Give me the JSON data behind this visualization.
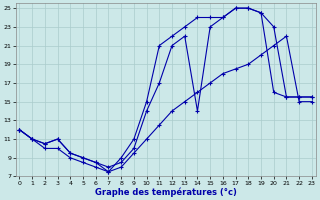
{
  "bg_color": "#cce8e8",
  "line_color": "#0000aa",
  "grid_color": "#aacccc",
  "xlim_min": -0.3,
  "xlim_max": 23.3,
  "ylim_min": 7,
  "ylim_max": 25.5,
  "xticks": [
    0,
    1,
    2,
    3,
    4,
    5,
    6,
    7,
    8,
    9,
    10,
    11,
    12,
    13,
    14,
    15,
    16,
    17,
    18,
    19,
    20,
    21,
    22,
    23
  ],
  "yticks": [
    7,
    9,
    11,
    13,
    15,
    17,
    19,
    21,
    23,
    25
  ],
  "line1_x": [
    0,
    1,
    2,
    3,
    4,
    5,
    6,
    7,
    8,
    9,
    10,
    11,
    12,
    13,
    14,
    15,
    16,
    17,
    18,
    19,
    20,
    21,
    22,
    23
  ],
  "line1_y": [
    12,
    11,
    10.5,
    11,
    9.5,
    9,
    8.5,
    8,
    8.5,
    10,
    14,
    17,
    21,
    22,
    14,
    23,
    24,
    25,
    25,
    24.5,
    23,
    15.5,
    15.5,
    15.5
  ],
  "line2_x": [
    0,
    1,
    2,
    3,
    4,
    5,
    6,
    7,
    8,
    9,
    10,
    11,
    12,
    13,
    14,
    15,
    16,
    17,
    18,
    19,
    20,
    21,
    22,
    23
  ],
  "line2_y": [
    12,
    11,
    10,
    10,
    9,
    8.5,
    8,
    7.5,
    8,
    9.5,
    11,
    12.5,
    14,
    15,
    16,
    17,
    18,
    18.5,
    19,
    20,
    21,
    22,
    15,
    15
  ],
  "line3_x": [
    0,
    1,
    2,
    3,
    4,
    5,
    6,
    7,
    8,
    9,
    10,
    11,
    12,
    13,
    14,
    15,
    16,
    17,
    18,
    19,
    20,
    21,
    22,
    23
  ],
  "line3_y": [
    12,
    11,
    10.5,
    11,
    9.5,
    9,
    8.5,
    7.5,
    9,
    11,
    15,
    21,
    22,
    23,
    24,
    24,
    24,
    25,
    25,
    24.5,
    16,
    15.5,
    15.5,
    15.5
  ],
  "xlabel": "Graphe des températures (°c)",
  "tick_labelsize": 4.5,
  "xlabel_fontsize": 6.0
}
